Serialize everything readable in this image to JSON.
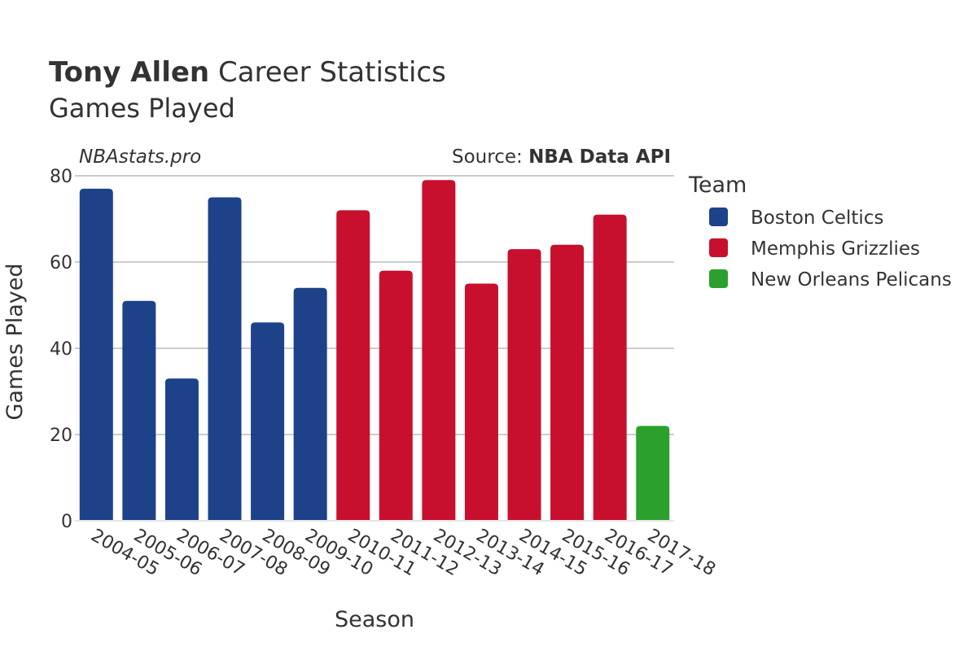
{
  "header": {
    "player_name": "Tony Allen",
    "title_rest": " Career Statistics",
    "subtitle": "Games Played"
  },
  "watermark": "NBAstats.pro",
  "source": {
    "prefix": "Source: ",
    "name": "NBA Data API"
  },
  "legend": {
    "title": "Team",
    "items": [
      {
        "name": "Boston Celtics",
        "color": "#1d428a"
      },
      {
        "name": "Memphis Grizzlies",
        "color": "#c8102e"
      },
      {
        "name": "New Orleans Pelicans",
        "color": "#2ca02c"
      }
    ]
  },
  "chart_data": {
    "type": "bar",
    "title": "Tony Allen Career Statistics",
    "subtitle": "Games Played",
    "xlabel": "Season",
    "ylabel": "Games Played",
    "ylim": [
      0,
      80
    ],
    "yticks": [
      0,
      20,
      40,
      60,
      80
    ],
    "grid": true,
    "legend_placement": "right",
    "categories": [
      "2004-05",
      "2005-06",
      "2006-07",
      "2007-08",
      "2008-09",
      "2009-10",
      "2010-11",
      "2011-12",
      "2012-13",
      "2013-14",
      "2014-15",
      "2015-16",
      "2016-17",
      "2017-18"
    ],
    "values": [
      77,
      51,
      33,
      75,
      46,
      54,
      72,
      58,
      79,
      55,
      63,
      64,
      71,
      22
    ],
    "teams": [
      "Boston Celtics",
      "Boston Celtics",
      "Boston Celtics",
      "Boston Celtics",
      "Boston Celtics",
      "Boston Celtics",
      "Memphis Grizzlies",
      "Memphis Grizzlies",
      "Memphis Grizzlies",
      "Memphis Grizzlies",
      "Memphis Grizzlies",
      "Memphis Grizzlies",
      "Memphis Grizzlies",
      "New Orleans Pelicans"
    ]
  }
}
